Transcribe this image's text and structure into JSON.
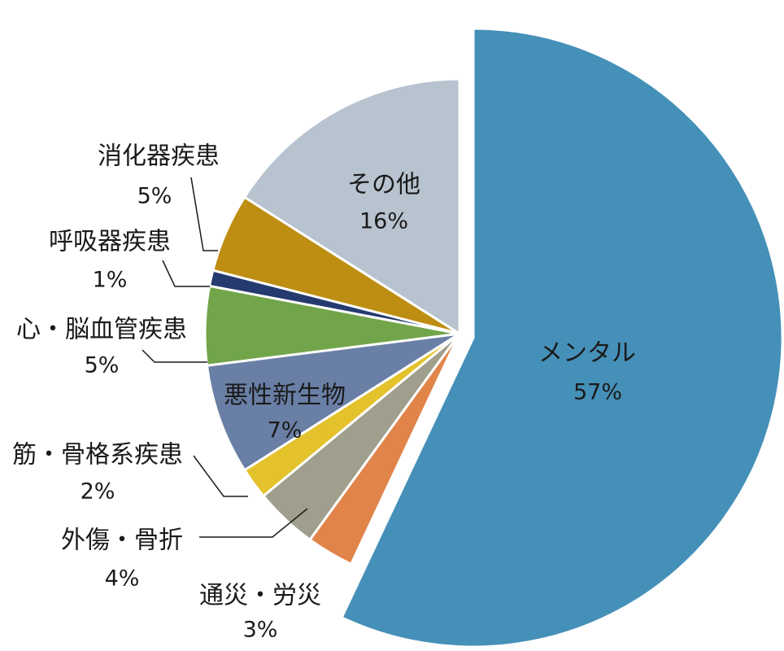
{
  "chart_data": {
    "type": "pie",
    "categories": [
      "メンタル",
      "通災・労災",
      "外傷・骨折",
      "筋・骨格系疾患",
      "悪性新生物",
      "心・脳血管疾患",
      "呼吸器疾患",
      "消化器疾患",
      "その他"
    ],
    "values": [
      57,
      3,
      4,
      2,
      7,
      5,
      1,
      5,
      16
    ],
    "value_labels": [
      "57%",
      "3%",
      "4%",
      "2%",
      "7%",
      "5%",
      "1%",
      "5%",
      "16%"
    ],
    "colors": [
      "#4590b8",
      "#e0844a",
      "#a09e8c",
      "#e3c22c",
      "#6a7fa6",
      "#72a54a",
      "#253a6e",
      "#be8e12",
      "#b7c3cf"
    ]
  }
}
